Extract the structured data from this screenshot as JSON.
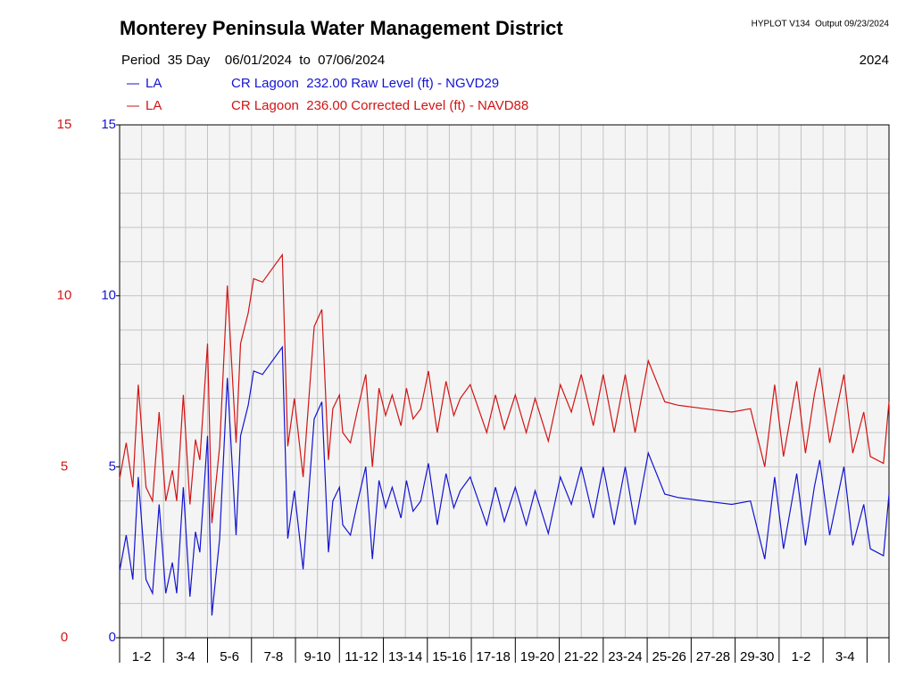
{
  "chart_data": {
    "type": "line",
    "title": "Monterey Peninsula Water Management District",
    "version": "HYPLOT V134  Output 09/23/2024",
    "period": "Period  35 Day    06/01/2024  to  07/06/2024",
    "year": "2024",
    "x": [
      0,
      0.3,
      0.6,
      0.85,
      1.2,
      1.5,
      1.8,
      2.1,
      2.4,
      2.6,
      2.9,
      3.2,
      3.45,
      3.65,
      4.0,
      4.2,
      4.55,
      4.9,
      5.3,
      5.5,
      5.85,
      6.1,
      6.5,
      7.4,
      7.65,
      7.95,
      8.35,
      8.85,
      9.2,
      9.5,
      9.7,
      10.0,
      10.15,
      10.5,
      10.8,
      11.2,
      11.5,
      11.8,
      12.1,
      12.4,
      12.8,
      13.05,
      13.35,
      13.7,
      14.05,
      14.45,
      14.85,
      15.2,
      15.5,
      15.95,
      16.7,
      17.1,
      17.5,
      18.0,
      18.5,
      18.9,
      19.5,
      20.05,
      20.55,
      21.0,
      21.55,
      22.0,
      22.5,
      23.0,
      23.45,
      24.05,
      24.8,
      25.4,
      26.6,
      27.85,
      28.7,
      29.35,
      29.8,
      30.2,
      30.8,
      31.2,
      31.6,
      31.85,
      32.3,
      32.95,
      33.35,
      33.85,
      34.15,
      34.75,
      35
    ],
    "xlim": [
      0,
      35
    ],
    "xticks": [
      {
        "value": 1,
        "label": "1-2"
      },
      {
        "value": 3,
        "label": "3-4"
      },
      {
        "value": 5,
        "label": "5-6"
      },
      {
        "value": 7,
        "label": "7-8"
      },
      {
        "value": 9,
        "label": "9-10"
      },
      {
        "value": 11,
        "label": "11-12"
      },
      {
        "value": 13,
        "label": "13-14"
      },
      {
        "value": 15,
        "label": "15-16"
      },
      {
        "value": 17,
        "label": "17-18"
      },
      {
        "value": 19,
        "label": "19-20"
      },
      {
        "value": 21,
        "label": "21-22"
      },
      {
        "value": 23,
        "label": "23-24"
      },
      {
        "value": 25,
        "label": "25-26"
      },
      {
        "value": 27,
        "label": "27-28"
      },
      {
        "value": 29,
        "label": "29-30"
      },
      {
        "value": 31,
        "label": "1-2"
      },
      {
        "value": 33,
        "label": "3-4"
      }
    ],
    "ylim": [
      0,
      15
    ],
    "yticks": [
      0,
      5,
      10,
      15
    ],
    "y2lim": [
      0,
      15
    ],
    "y2ticks": [
      0,
      5,
      10,
      15
    ],
    "grid": true,
    "series": [
      {
        "code": "LA",
        "name": "CR Lagoon  232.00 Raw Level (ft) - NGVD29",
        "color": "#1414d2",
        "values": [
          1.95,
          3.0,
          1.7,
          4.7,
          1.7,
          1.3,
          3.9,
          1.3,
          2.2,
          1.3,
          4.4,
          1.2,
          3.1,
          2.5,
          5.9,
          0.65,
          2.9,
          7.6,
          3.0,
          5.9,
          6.8,
          7.8,
          7.7,
          8.5,
          2.9,
          4.3,
          2.0,
          6.4,
          6.9,
          2.5,
          4.0,
          4.4,
          3.3,
          3.0,
          3.9,
          5.0,
          2.3,
          4.6,
          3.8,
          4.4,
          3.5,
          4.6,
          3.7,
          4.0,
          5.1,
          3.3,
          4.8,
          3.8,
          4.3,
          4.7,
          3.3,
          4.4,
          3.4,
          4.4,
          3.3,
          4.3,
          3.05,
          4.7,
          3.9,
          5.0,
          3.5,
          5.0,
          3.3,
          5.0,
          3.3,
          5.4,
          4.2,
          4.1,
          4.0,
          3.9,
          4.0,
          2.3,
          4.7,
          2.6,
          4.8,
          2.7,
          4.4,
          5.2,
          3.0,
          5.0,
          2.7,
          3.9,
          2.6,
          2.4,
          4.2
        ]
      },
      {
        "code": "LA",
        "name": "CR Lagoon  236.00 Corrected Level (ft) - NAVD88",
        "color": "#d21414",
        "axis": "y2",
        "values": [
          4.65,
          5.7,
          4.4,
          7.4,
          4.4,
          4.0,
          6.6,
          4.0,
          4.9,
          4.0,
          7.1,
          3.9,
          5.8,
          5.2,
          8.6,
          3.35,
          5.6,
          10.3,
          5.7,
          8.6,
          9.5,
          10.5,
          10.4,
          11.2,
          5.6,
          7.0,
          4.7,
          9.1,
          9.6,
          5.2,
          6.7,
          7.1,
          6.0,
          5.7,
          6.6,
          7.7,
          5.0,
          7.3,
          6.5,
          7.1,
          6.2,
          7.3,
          6.4,
          6.7,
          7.8,
          6.0,
          7.5,
          6.5,
          7.0,
          7.4,
          6.0,
          7.1,
          6.1,
          7.1,
          6.0,
          7.0,
          5.75,
          7.4,
          6.6,
          7.7,
          6.2,
          7.7,
          6.0,
          7.7,
          6.0,
          8.1,
          6.9,
          6.8,
          6.7,
          6.6,
          6.7,
          5.0,
          7.4,
          5.3,
          7.5,
          5.4,
          7.1,
          7.9,
          5.7,
          7.7,
          5.4,
          6.6,
          5.3,
          5.1,
          6.9
        ]
      }
    ]
  }
}
